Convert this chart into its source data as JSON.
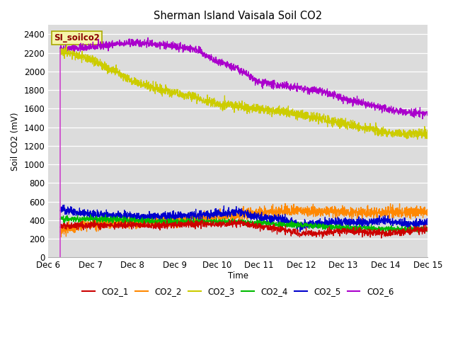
{
  "title": "Sherman Island Vaisala Soil CO2",
  "ylabel": "Soil CO2 (mV)",
  "xlabel": "Time",
  "ylim": [
    0,
    2500
  ],
  "yticks": [
    0,
    200,
    400,
    600,
    800,
    1000,
    1200,
    1400,
    1600,
    1800,
    2000,
    2200,
    2400
  ],
  "background_color": "#dcdcdc",
  "legend_label": "SI_soilco2",
  "series_colors": {
    "CO2_1": "#cc0000",
    "CO2_2": "#ff8800",
    "CO2_3": "#cccc00",
    "CO2_4": "#00bb00",
    "CO2_5": "#0000cc",
    "CO2_6": "#aa00cc"
  },
  "spike_color": "#cc44cc",
  "num_points": 2000,
  "x_start_day": 6.28,
  "x_end_day": 15.0,
  "xtick_days": [
    6,
    7,
    8,
    9,
    10,
    11,
    12,
    13,
    14,
    15
  ],
  "xtick_labels": [
    "Dec 6",
    "Dec 7",
    "Dec 8",
    "Dec 9",
    "Dec 10",
    "Dec 11",
    "Dec 12",
    "Dec 13",
    "Dec 14",
    "Dec 15"
  ],
  "co2_6_knots_x": [
    6.28,
    6.5,
    7.0,
    7.5,
    8.0,
    8.5,
    9.0,
    9.5,
    10.0,
    10.5,
    11.0,
    11.5,
    12.0,
    12.5,
    13.0,
    13.5,
    14.0,
    14.5,
    15.0
  ],
  "co2_6_knots_y": [
    2245,
    2250,
    2260,
    2290,
    2310,
    2300,
    2270,
    2240,
    2100,
    2030,
    1880,
    1850,
    1820,
    1780,
    1710,
    1650,
    1600,
    1560,
    1545
  ],
  "co2_3_knots_x": [
    6.28,
    6.5,
    7.0,
    7.5,
    8.0,
    8.5,
    9.0,
    9.5,
    10.0,
    10.5,
    11.0,
    11.5,
    12.0,
    12.5,
    13.0,
    13.5,
    14.0,
    14.5,
    15.0
  ],
  "co2_3_knots_y": [
    2230,
    2200,
    2130,
    2020,
    1900,
    1820,
    1770,
    1720,
    1650,
    1630,
    1600,
    1575,
    1530,
    1490,
    1440,
    1390,
    1350,
    1330,
    1330
  ],
  "co2_2_knots_x": [
    6.28,
    6.5,
    7.0,
    7.5,
    8.0,
    8.5,
    9.0,
    9.5,
    10.0,
    10.5,
    11.0,
    11.5,
    12.0,
    12.5,
    13.0,
    13.5,
    14.0,
    14.5,
    15.0
  ],
  "co2_2_knots_y": [
    295,
    310,
    360,
    370,
    375,
    385,
    395,
    420,
    435,
    455,
    480,
    495,
    505,
    498,
    488,
    480,
    488,
    498,
    485
  ],
  "co2_5_knots_x": [
    6.28,
    6.5,
    7.0,
    7.5,
    8.0,
    8.5,
    9.0,
    9.5,
    10.0,
    10.5,
    11.0,
    11.5,
    12.0,
    12.5,
    13.0,
    13.5,
    14.0,
    14.5,
    15.0
  ],
  "co2_5_knots_y": [
    525,
    490,
    468,
    450,
    445,
    440,
    450,
    455,
    470,
    490,
    430,
    415,
    340,
    370,
    385,
    375,
    395,
    360,
    368
  ],
  "co2_4_knots_x": [
    6.28,
    6.5,
    7.0,
    7.5,
    8.0,
    8.5,
    9.0,
    9.5,
    10.0,
    10.5,
    11.0,
    11.5,
    12.0,
    12.5,
    13.0,
    13.5,
    14.0,
    14.5,
    15.0
  ],
  "co2_4_knots_y": [
    415,
    415,
    415,
    405,
    400,
    385,
    385,
    385,
    390,
    382,
    370,
    355,
    350,
    332,
    318,
    315,
    308,
    302,
    308
  ],
  "co2_1_knots_x": [
    6.28,
    6.5,
    7.0,
    7.5,
    8.0,
    8.5,
    9.0,
    9.5,
    10.0,
    10.5,
    11.0,
    11.5,
    12.0,
    12.5,
    13.0,
    13.5,
    14.0,
    14.5,
    15.0
  ],
  "co2_1_knots_y": [
    335,
    340,
    348,
    343,
    350,
    342,
    350,
    365,
    355,
    375,
    335,
    305,
    255,
    265,
    285,
    270,
    260,
    280,
    308
  ]
}
